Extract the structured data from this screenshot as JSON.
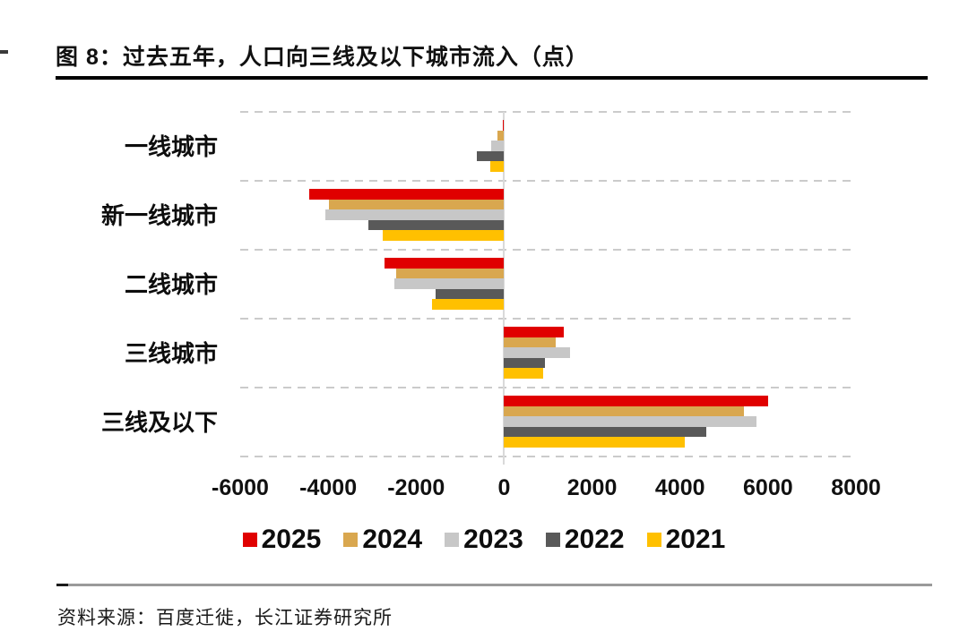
{
  "figure": {
    "title": "图 8：过去五年，人口向三线及以下城市流入（点）",
    "source": "资料来源：百度迁徙，长江证券研究所"
  },
  "chart_data": {
    "type": "bar",
    "orientation": "horizontal",
    "title": "过去五年，人口向三线及以下城市流入（点）",
    "categories": [
      "一线城市",
      "新一线城市",
      "二线城市",
      "三线城市",
      "三线及以下"
    ],
    "series": [
      {
        "name": "2025",
        "color": "#E00000",
        "values": [
          -20,
          -4430,
          -2720,
          1350,
          6000
        ]
      },
      {
        "name": "2024",
        "color": "#D9A74F",
        "values": [
          -160,
          -3980,
          -2460,
          1180,
          5450
        ]
      },
      {
        "name": "2023",
        "color": "#C7C7C7",
        "values": [
          -300,
          -4070,
          -2500,
          1500,
          5730
        ]
      },
      {
        "name": "2022",
        "color": "#595959",
        "values": [
          -630,
          -3090,
          -1550,
          930,
          4590
        ]
      },
      {
        "name": "2021",
        "color": "#FFC000",
        "values": [
          -320,
          -2770,
          -1640,
          890,
          4110
        ]
      }
    ],
    "x_ticks": [
      -6000,
      -4000,
      -2000,
      0,
      2000,
      4000,
      6000,
      8000
    ],
    "xlim": [
      -6000,
      8000
    ],
    "grid": true,
    "gridline_style": "dashed",
    "legend_position": "bottom",
    "legend": [
      "2025",
      "2024",
      "2023",
      "2022",
      "2021"
    ]
  },
  "style_colors": {
    "axis_line": "#D9D9D9",
    "gridline": "#CBCBCB",
    "title_rule": "#000000",
    "bottom_rule": "#9A9A9A",
    "bottom_rule_dash": "#1A1A1A"
  }
}
